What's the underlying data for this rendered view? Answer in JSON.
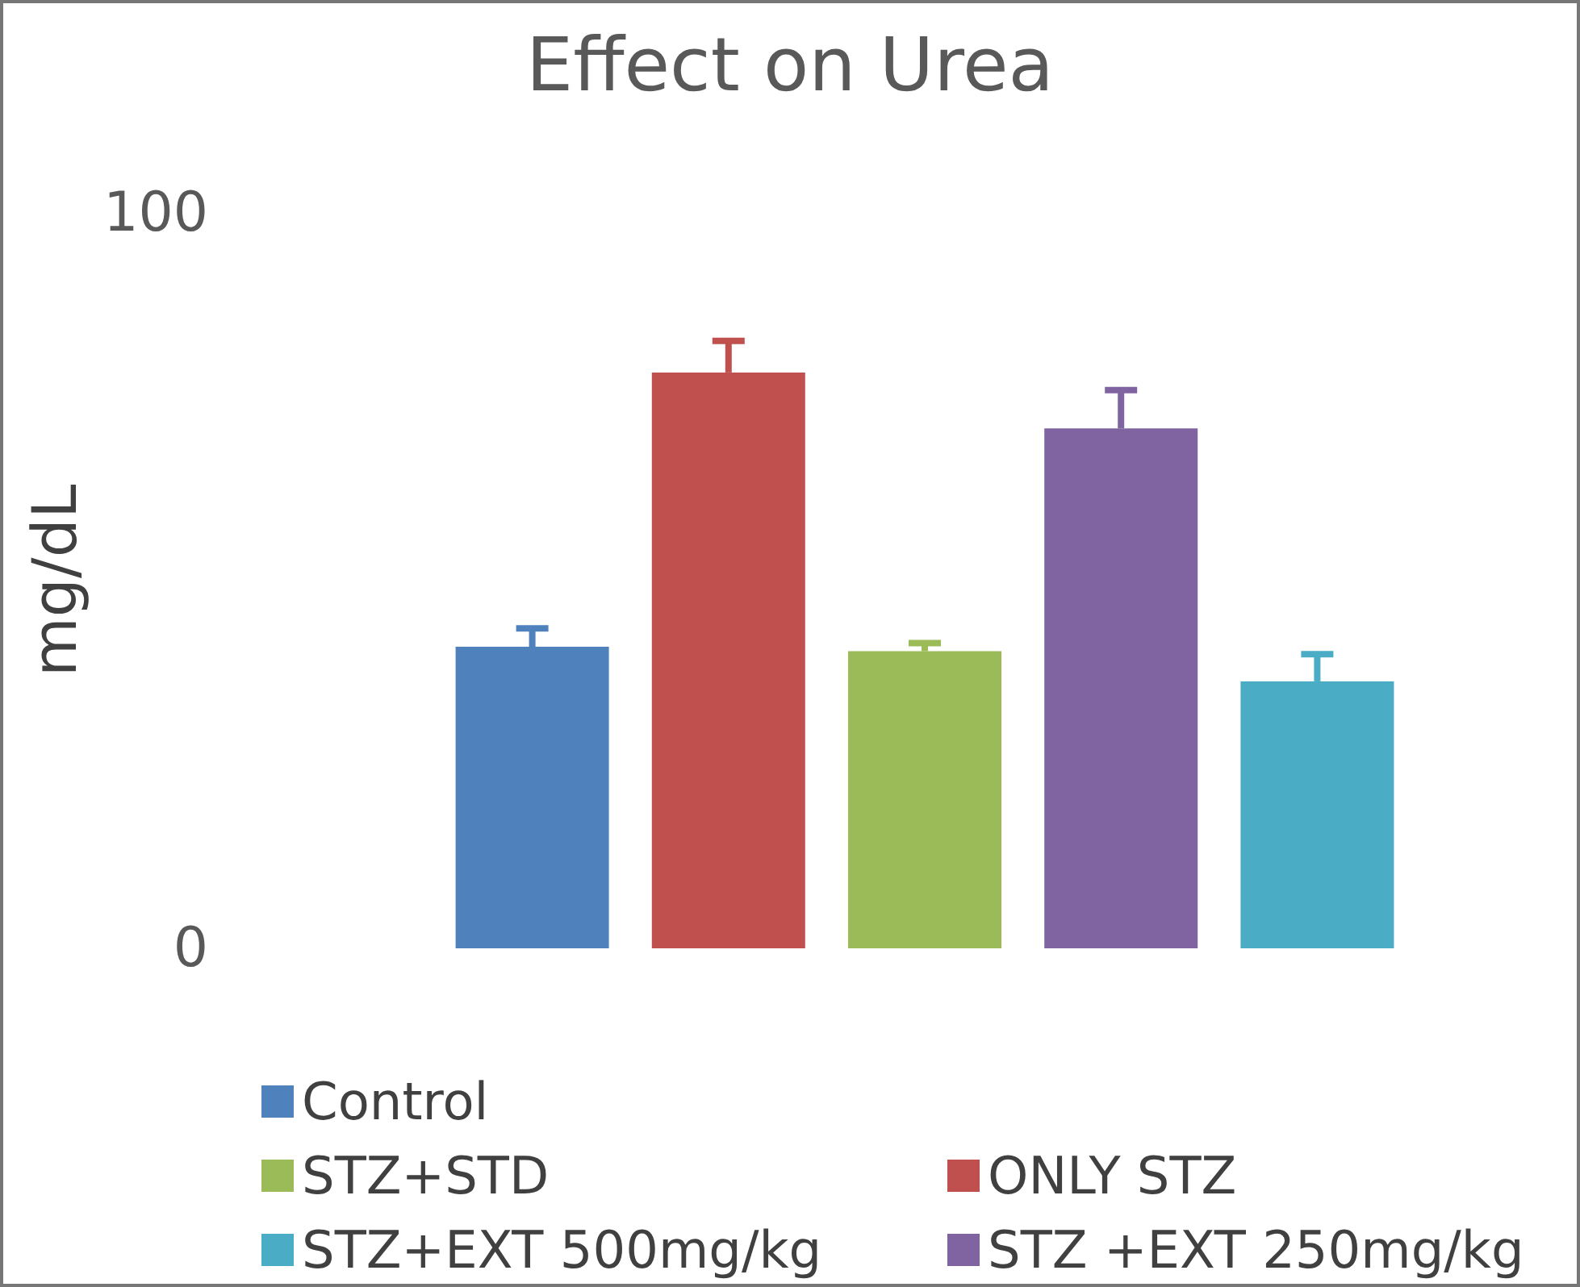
{
  "chart_data": {
    "type": "bar",
    "title": "Effect on Urea",
    "ylabel": "mg/dL",
    "categories": [
      null
    ],
    "series": [
      {
        "name": "Control",
        "color": "#4f81bd",
        "values": [
          41
        ],
        "errors": [
          [
            41,
            43.5
          ]
        ]
      },
      {
        "name": "ONLY STZ",
        "color": "#c0504d",
        "values": [
          78.3
        ],
        "errors": [
          [
            78.3,
            82.6
          ]
        ]
      },
      {
        "name": "STZ+STD",
        "color": "#9bbb59",
        "values": [
          40.4
        ],
        "errors": [
          [
            40.4,
            41.5
          ]
        ]
      },
      {
        "name": "STZ +EXT 250mg/kg",
        "color": "#8064a2",
        "values": [
          70.7
        ],
        "errors": [
          [
            70.7,
            75.9
          ]
        ]
      },
      {
        "name": "STZ+EXT 500mg/kg",
        "color": "#4bacc6",
        "values": [
          36.3
        ],
        "errors": [
          [
            36.3,
            40
          ]
        ]
      }
    ],
    "ylim": [
      0,
      100
    ],
    "yticks": [
      0,
      100
    ],
    "grid": false,
    "legend": "bottom"
  }
}
